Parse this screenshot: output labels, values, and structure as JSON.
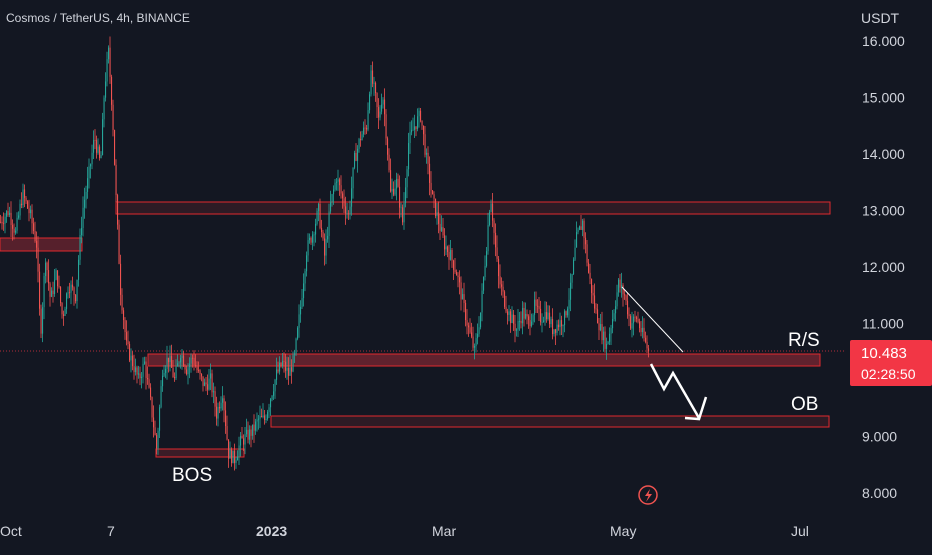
{
  "chart_data": {
    "type": "line",
    "title": "Cosmos / TetherUS, 4h, BINANCE",
    "currency": "USDT",
    "y_ticks": [
      "16.000",
      "15.000",
      "14.000",
      "13.000",
      "12.000",
      "11.000",
      "9.000",
      "8.000"
    ],
    "y_tick_values": [
      16,
      15,
      14,
      13,
      12,
      11,
      9,
      8
    ],
    "ylim": [
      7.55,
      16.45
    ],
    "x_ticks": [
      "Oct",
      "7",
      "2023",
      "Mar",
      "May",
      "Jul"
    ],
    "series_points": [
      [
        0,
        12.8
      ],
      [
        8,
        13.0
      ],
      [
        15,
        12.6
      ],
      [
        22,
        13.3
      ],
      [
        30,
        12.9
      ],
      [
        36,
        12.4
      ],
      [
        40,
        10.8
      ],
      [
        45,
        12.2
      ],
      [
        50,
        11.4
      ],
      [
        56,
        11.9
      ],
      [
        62,
        11.1
      ],
      [
        68,
        11.7
      ],
      [
        75,
        11.5
      ],
      [
        82,
        13.0
      ],
      [
        88,
        13.6
      ],
      [
        94,
        14.3
      ],
      [
        100,
        13.8
      ],
      [
        104,
        15.2
      ],
      [
        108,
        15.8
      ],
      [
        112,
        14.7
      ],
      [
        116,
        13.0
      ],
      [
        120,
        11.6
      ],
      [
        126,
        10.6
      ],
      [
        132,
        10.3
      ],
      [
        138,
        10.0
      ],
      [
        144,
        10.3
      ],
      [
        150,
        9.6
      ],
      [
        156,
        8.8
      ],
      [
        162,
        10.2
      ],
      [
        168,
        10.4
      ],
      [
        174,
        10.0
      ],
      [
        180,
        10.5
      ],
      [
        186,
        10.2
      ],
      [
        192,
        10.4
      ],
      [
        198,
        10.1
      ],
      [
        204,
        9.9
      ],
      [
        210,
        10.0
      ],
      [
        216,
        9.4
      ],
      [
        222,
        9.8
      ],
      [
        228,
        8.7
      ],
      [
        234,
        8.6
      ],
      [
        240,
        8.9
      ],
      [
        246,
        9.0
      ],
      [
        252,
        9.1
      ],
      [
        258,
        9.3
      ],
      [
        264,
        9.3
      ],
      [
        270,
        9.7
      ],
      [
        276,
        10.1
      ],
      [
        282,
        10.3
      ],
      [
        288,
        10.1
      ],
      [
        294,
        10.4
      ],
      [
        300,
        11.3
      ],
      [
        306,
        12.3
      ],
      [
        312,
        12.6
      ],
      [
        318,
        13.0
      ],
      [
        324,
        12.2
      ],
      [
        330,
        13.1
      ],
      [
        336,
        13.6
      ],
      [
        342,
        13.2
      ],
      [
        348,
        12.9
      ],
      [
        354,
        13.9
      ],
      [
        360,
        14.3
      ],
      [
        366,
        14.5
      ],
      [
        370,
        15.4
      ],
      [
        374,
        15.1
      ],
      [
        378,
        14.6
      ],
      [
        382,
        15.1
      ],
      [
        386,
        14.3
      ],
      [
        390,
        13.3
      ],
      [
        396,
        13.5
      ],
      [
        402,
        12.8
      ],
      [
        408,
        14.2
      ],
      [
        414,
        14.5
      ],
      [
        420,
        14.7
      ],
      [
        426,
        13.9
      ],
      [
        432,
        13.2
      ],
      [
        438,
        12.8
      ],
      [
        444,
        12.4
      ],
      [
        450,
        12.2
      ],
      [
        456,
        11.9
      ],
      [
        462,
        11.4
      ],
      [
        468,
        10.9
      ],
      [
        474,
        10.5
      ],
      [
        480,
        11.2
      ],
      [
        486,
        12.4
      ],
      [
        490,
        13.3
      ],
      [
        494,
        12.5
      ],
      [
        498,
        11.8
      ],
      [
        504,
        11.4
      ],
      [
        510,
        11.1
      ],
      [
        516,
        10.9
      ],
      [
        522,
        11.2
      ],
      [
        528,
        11.0
      ],
      [
        534,
        11.3
      ],
      [
        540,
        11.1
      ],
      [
        546,
        11.2
      ],
      [
        552,
        10.9
      ],
      [
        558,
        11.0
      ],
      [
        564,
        11.1
      ],
      [
        570,
        11.6
      ],
      [
        576,
        12.5
      ],
      [
        582,
        12.8
      ],
      [
        588,
        11.9
      ],
      [
        594,
        11.3
      ],
      [
        600,
        10.9
      ],
      [
        606,
        10.6
      ],
      [
        612,
        11.1
      ],
      [
        618,
        11.7
      ],
      [
        624,
        11.5
      ],
      [
        630,
        11.0
      ],
      [
        636,
        11.1
      ],
      [
        642,
        10.8
      ],
      [
        648,
        10.5
      ]
    ],
    "last_price": "10.483",
    "countdown": "02:28:50",
    "annotations": {
      "rs": "R/S",
      "ob": "OB",
      "bos": "BOS"
    },
    "colors": {
      "background": "#131722",
      "candle_up": "#26a69a",
      "candle_down": "#ef5350",
      "zone_fill": "#f23645",
      "zone_stroke": "#e0292d",
      "price_tag": "#f23645",
      "text": "#d1d4dc",
      "annotation": "#ffffff"
    },
    "icons": {
      "flash": "flash-icon"
    }
  }
}
